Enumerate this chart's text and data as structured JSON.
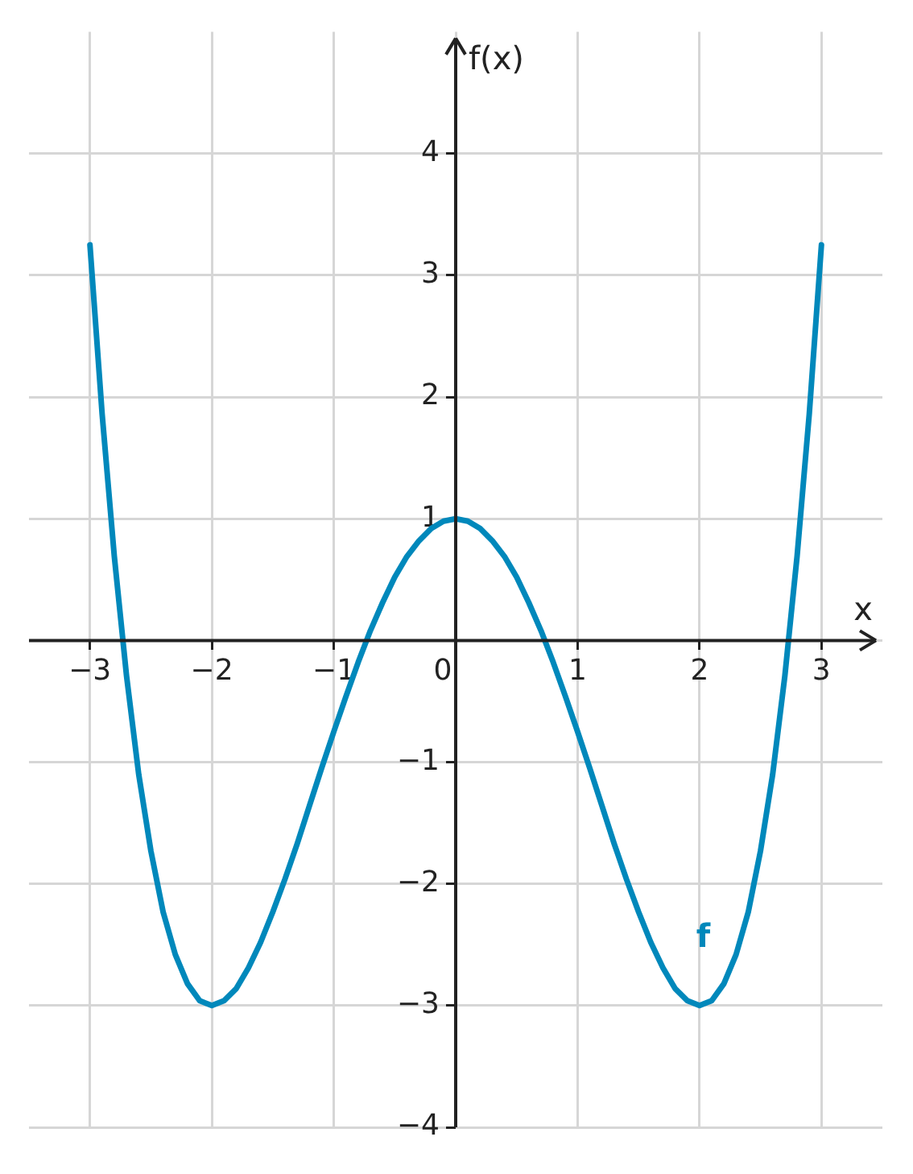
{
  "chart_data": {
    "type": "line",
    "xlabel": "x",
    "ylabel": "f(x)",
    "x": [
      -3,
      -2.9,
      -2.8,
      -2.7,
      -2.6,
      -2.5,
      -2.4,
      -2.3,
      -2.2,
      -2.1,
      -2,
      -1.9,
      -1.8,
      -1.7,
      -1.6,
      -1.5,
      -1.4,
      -1.3,
      -1.2,
      -1.1,
      -1,
      -0.9,
      -0.8,
      -0.7,
      -0.6,
      -0.5,
      -0.4,
      -0.3,
      -0.2,
      -0.1,
      0,
      0.1,
      0.2,
      0.3,
      0.4,
      0.5,
      0.6,
      0.7,
      0.8,
      0.9,
      1,
      1.1,
      1.2,
      1.3,
      1.4,
      1.5,
      1.6,
      1.7,
      1.8,
      1.9,
      2,
      2.1,
      2.2,
      2.3,
      2.4,
      2.5,
      2.6,
      2.7,
      2.8,
      2.9,
      3
    ],
    "series": [
      {
        "color": "#0088bb",
        "values": [
          3.25,
          1.86,
          0.69,
          -0.29,
          -1.1,
          -1.73,
          -2.23,
          -2.58,
          -2.82,
          -2.96,
          -3,
          -2.96,
          -2.86,
          -2.69,
          -2.48,
          -2.23,
          -1.96,
          -1.67,
          -1.36,
          -1.05,
          -0.75,
          -0.46,
          -0.18,
          0.08,
          0.31,
          0.52,
          0.69,
          0.82,
          0.92,
          0.98,
          1,
          0.98,
          0.92,
          0.82,
          0.69,
          0.52,
          0.31,
          0.08,
          -0.18,
          -0.46,
          -0.75,
          -1.05,
          -1.36,
          -1.67,
          -1.96,
          -2.23,
          -2.48,
          -2.69,
          -2.86,
          -2.96,
          -3,
          -2.96,
          -2.82,
          -2.58,
          -2.23,
          -1.73,
          -1.1,
          -0.29,
          0.69,
          1.86,
          3.25
        ]
      }
    ],
    "annotations": [
      "f"
    ],
    "xlim": [
      -3.5,
      3.5
    ],
    "ylim": [
      -4,
      5
    ],
    "xticks": [
      -3,
      -2,
      -1,
      0,
      1,
      2,
      3
    ],
    "yticks": [
      -4,
      -3,
      -2,
      -1,
      {
        "value": 0,
        "label": null
      },
      1,
      2,
      3,
      4
    ],
    "grid": true,
    "legend": false,
    "marker": "none",
    "line_style": "solid"
  }
}
